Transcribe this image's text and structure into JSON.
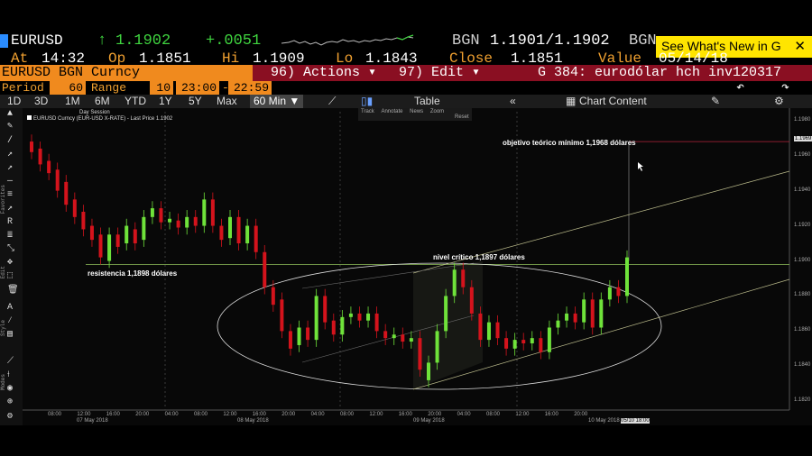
{
  "header": {
    "ticker": "EURUSD",
    "arrow": "↑",
    "last": "1.1902",
    "change": "+.0051",
    "bgn": "BGN",
    "bid_ask": "1.1901/1.1902",
    "bgn2": "BGN"
  },
  "banner": {
    "label": "See What's New in G",
    "close": "✕"
  },
  "stats": {
    "at_label": "At",
    "at": "14:32",
    "op_label": "Op",
    "op": "1.1851",
    "hi_label": "Hi",
    "hi": "1.1909",
    "lo_label": "Lo",
    "lo": "1.1843",
    "close_label": "Close",
    "close": "1.1851",
    "value_label": "Value",
    "value": "05/14/18"
  },
  "security": "EURUSD BGN Curncy",
  "action_bar": {
    "actions": "96) Actions ▾",
    "edit": "97) Edit ▾",
    "graph": "G 384: eurodólar hch inv120317"
  },
  "period_row": {
    "period_label": "Period",
    "period": "60",
    "range_label": "Range",
    "range": "10",
    "from": "23:00",
    "dash": "-",
    "to": "22:59"
  },
  "toolbar": {
    "ranges": [
      "1D",
      "3D",
      "1M",
      "6M",
      "YTD",
      "1Y",
      "5Y",
      "Max"
    ],
    "interval": "60 Min ▼",
    "table": "Table",
    "collapse": "«",
    "chart_content": "Chart Content",
    "gear": "⚙"
  },
  "chart_header": {
    "session": "Day Session",
    "legend": "EURUSD Curncy (EUR-USD X-RATE) - Last Price 1.1902",
    "tools": [
      "Track",
      "Annotate",
      "News",
      "Zoom",
      "Reset"
    ]
  },
  "annotations": {
    "target": "objetivo teórico mínimo 1,1968 dólares",
    "critical": "nivel crítico 1,1897 dólares",
    "resistance": "resistencia 1,1898 dólares"
  },
  "left_labels": [
    "Favorites",
    "Edit",
    "Style",
    "Modes"
  ],
  "chart_data": {
    "type": "candlestick",
    "y_ticks": [
      "1.1980",
      "1.1960",
      "1.1940",
      "1.1920",
      "1.1900",
      "1.1880",
      "1.1860",
      "1.1840",
      "1.1820"
    ],
    "current_price_tag": "1.1969",
    "ylim": [
      1.1815,
      1.1985
    ],
    "x_ticks": [
      "08:00",
      "12:00",
      "16:00",
      "20:00",
      "04:00",
      "08:00",
      "12:00",
      "16:00",
      "20:00",
      "04:00",
      "08:00",
      "12:00",
      "16:00",
      "20:00",
      "04:00",
      "08:00",
      "12:00",
      "16:00",
      "20:00"
    ],
    "date_labels": [
      "07 May 2018",
      "08 May 2018",
      "09 May 2018",
      "10 May 2018"
    ],
    "last_date_tag": "05/10 18:00",
    "series": [
      {
        "o": 1.1968,
        "c": 1.1962
      },
      {
        "o": 1.1964,
        "c": 1.1955
      },
      {
        "o": 1.1957,
        "c": 1.195
      },
      {
        "o": 1.1952,
        "c": 1.194
      },
      {
        "o": 1.1945,
        "c": 1.1932
      },
      {
        "o": 1.1935,
        "c": 1.1925
      },
      {
        "o": 1.1928,
        "c": 1.1918
      },
      {
        "o": 1.192,
        "c": 1.1912
      },
      {
        "o": 1.1915,
        "c": 1.1902
      },
      {
        "o": 1.19,
        "c": 1.1915
      },
      {
        "o": 1.1915,
        "c": 1.1908
      },
      {
        "o": 1.191,
        "c": 1.192
      },
      {
        "o": 1.1918,
        "c": 1.191
      },
      {
        "o": 1.1912,
        "c": 1.1925
      },
      {
        "o": 1.1925,
        "c": 1.193
      },
      {
        "o": 1.193,
        "c": 1.1922
      },
      {
        "o": 1.1922,
        "c": 1.1924
      },
      {
        "o": 1.1923,
        "c": 1.1919
      },
      {
        "o": 1.1919,
        "c": 1.1925
      },
      {
        "o": 1.1925,
        "c": 1.192
      },
      {
        "o": 1.192,
        "c": 1.1935
      },
      {
        "o": 1.1935,
        "c": 1.192
      },
      {
        "o": 1.192,
        "c": 1.1912
      },
      {
        "o": 1.1913,
        "c": 1.1925
      },
      {
        "o": 1.1925,
        "c": 1.191
      },
      {
        "o": 1.191,
        "c": 1.192
      },
      {
        "o": 1.192,
        "c": 1.1905
      },
      {
        "o": 1.1905,
        "c": 1.1885
      },
      {
        "o": 1.1885,
        "c": 1.1875
      },
      {
        "o": 1.1878,
        "c": 1.186
      },
      {
        "o": 1.186,
        "c": 1.185
      },
      {
        "o": 1.1852,
        "c": 1.1862
      },
      {
        "o": 1.1862,
        "c": 1.1855
      },
      {
        "o": 1.1855,
        "c": 1.188
      },
      {
        "o": 1.188,
        "c": 1.1865
      },
      {
        "o": 1.1866,
        "c": 1.1858
      },
      {
        "o": 1.1858,
        "c": 1.1868
      },
      {
        "o": 1.1868,
        "c": 1.187
      },
      {
        "o": 1.187,
        "c": 1.1866
      },
      {
        "o": 1.1866,
        "c": 1.187
      },
      {
        "o": 1.187,
        "c": 1.186
      },
      {
        "o": 1.186,
        "c": 1.1856
      },
      {
        "o": 1.1856,
        "c": 1.1858
      },
      {
        "o": 1.1858,
        "c": 1.1854
      },
      {
        "o": 1.1854,
        "c": 1.1856
      },
      {
        "o": 1.1856,
        "c": 1.1838
      },
      {
        "o": 1.1832,
        "c": 1.1842
      },
      {
        "o": 1.1842,
        "c": 1.186
      },
      {
        "o": 1.186,
        "c": 1.188
      },
      {
        "o": 1.188,
        "c": 1.1895
      },
      {
        "o": 1.1895,
        "c": 1.1885
      },
      {
        "o": 1.1885,
        "c": 1.187
      },
      {
        "o": 1.187,
        "c": 1.1855
      },
      {
        "o": 1.1855,
        "c": 1.1865
      },
      {
        "o": 1.1865,
        "c": 1.1856
      },
      {
        "o": 1.1856,
        "c": 1.185
      },
      {
        "o": 1.185,
        "c": 1.1855
      },
      {
        "o": 1.1855,
        "c": 1.1853
      },
      {
        "o": 1.1853,
        "c": 1.1856
      },
      {
        "o": 1.1856,
        "c": 1.1848
      },
      {
        "o": 1.1848,
        "c": 1.1862
      },
      {
        "o": 1.1862,
        "c": 1.1866
      },
      {
        "o": 1.1866,
        "c": 1.187
      },
      {
        "o": 1.187,
        "c": 1.1865
      },
      {
        "o": 1.1865,
        "c": 1.1878
      },
      {
        "o": 1.1878,
        "c": 1.1862
      },
      {
        "o": 1.1862,
        "c": 1.1878
      },
      {
        "o": 1.1878,
        "c": 1.1885
      },
      {
        "o": 1.1885,
        "c": 1.188
      },
      {
        "o": 1.188,
        "c": 1.1902
      }
    ]
  },
  "colors": {
    "up": "#6fe23a",
    "down": "#d4131c",
    "accent": "#f08a1e",
    "bar": "#8a0f22",
    "banner": "#ffe500"
  }
}
